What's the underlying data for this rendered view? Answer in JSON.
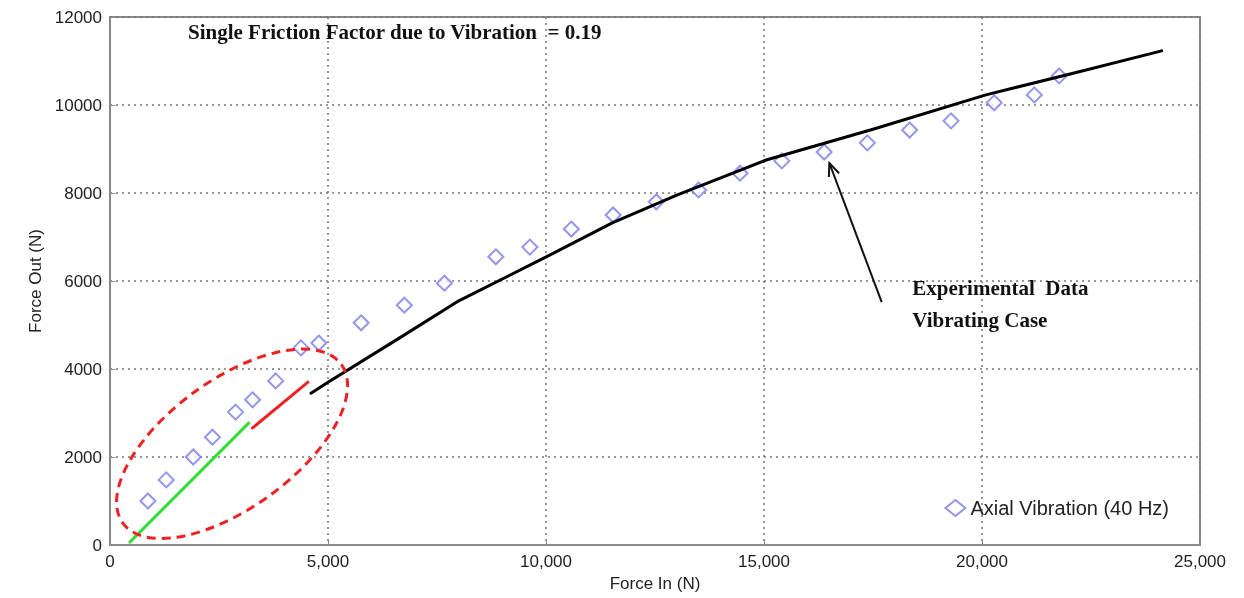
{
  "chart_data": {
    "type": "scatter",
    "title": "Single Friction Factor due to Vibration  = 0.19",
    "xlabel": "Force In (N)",
    "ylabel": "Force Out (N)",
    "annotations": [
      "Experimental  Data\nVibrating Case"
    ],
    "xlim": [
      0,
      25000
    ],
    "xticks": [
      0,
      {
        "value": 5000,
        "label": "5,000"
      },
      {
        "value": 10000,
        "label": "10,000"
      },
      {
        "value": 15000,
        "label": "15,000"
      },
      {
        "value": 20000,
        "label": "20,000"
      },
      {
        "value": 25000,
        "label": "25,000"
      }
    ],
    "ylim": [
      0,
      12000
    ],
    "yticks": [
      0,
      2000,
      4000,
      6000,
      8000,
      10000,
      12000
    ],
    "grid": true,
    "legend": "bottom right",
    "series": [
      {
        "name": "Axial Vibration (40 Hz)",
        "marker": "diamond",
        "color": "#7b7be8",
        "x": [
          870,
          1290,
          1910,
          2350,
          2880,
          3270,
          3800,
          4380,
          4790,
          5760,
          6750,
          7670,
          8850,
          9630,
          10580,
          11540,
          12530,
          13500,
          14450,
          15410,
          16380,
          17370,
          18340,
          19290,
          20280,
          21200,
          21770
        ],
        "values": [
          1000,
          1480,
          2000,
          2450,
          3020,
          3300,
          3730,
          4480,
          4590,
          5050,
          5450,
          5950,
          6550,
          6770,
          7180,
          7500,
          7800,
          8070,
          8450,
          8730,
          8930,
          9140,
          9430,
          9640,
          10050,
          10230,
          10660
        ]
      },
      {
        "type": "line",
        "marker": "none",
        "line_style": "solid",
        "color": "#33dd33",
        "x": [
          460,
          3180
        ],
        "values": [
          70,
          2770
        ]
      },
      {
        "type": "line",
        "marker": "none",
        "line_style": "solid",
        "color": "#ee2222",
        "x": [
          3270,
          4540
        ],
        "values": [
          2660,
          3700
        ]
      },
      {
        "type": "line",
        "marker": "none",
        "line_style": "solid",
        "color": "#000000",
        "x": [
          4610,
          5000,
          6680,
          8000,
          10050,
          11520,
          13000,
          15050,
          17500,
          20090,
          22000,
          24120
        ],
        "values": [
          3450,
          3700,
          4730,
          5550,
          6570,
          7320,
          7950,
          8750,
          9450,
          10230,
          10700,
          11230
        ]
      }
    ]
  }
}
